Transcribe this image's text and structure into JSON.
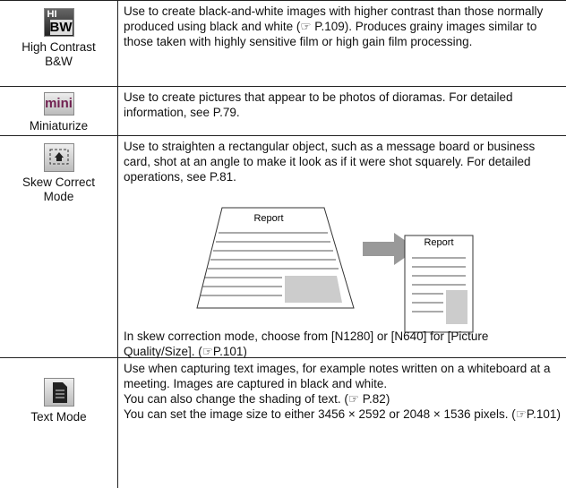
{
  "rows": [
    {
      "icon_text": [
        "HI",
        "BW"
      ],
      "label": [
        "High Contrast",
        "B&W"
      ],
      "text": [
        "Use to create black-and-white images with higher contrast than those normally produced using black and white (☞ P.109).  Produces grainy images similar to those taken with highly sensitive film or high gain film processing."
      ]
    },
    {
      "icon_text": [
        "mini"
      ],
      "label": [
        "Miniaturize"
      ],
      "text": [
        "Use to create pictures that appear to be photos of dioramas. For detailed information, see P.79."
      ]
    },
    {
      "icon_text": [],
      "label": [
        "Skew Correct",
        "Mode"
      ],
      "text": [
        "Use to straighten a rectangular object, such as a message board or business card, shot at an angle to make it look as if it were shot squarely. For detailed operations, see P.81.",
        "In skew correction mode, choose from [N1280] or [N640] for [Picture Quality/Size]. (☞P.101)"
      ],
      "diagram": [
        "Report",
        "Report"
      ]
    },
    {
      "icon_text": [],
      "label": [
        "Text Mode"
      ],
      "text": [
        "Use when capturing text images, for example notes written on a whiteboard at a meeting. Images are captured in black and white.",
        "You can also change the shading of text. (☞ P.82)",
        "You can set the image size to either 3456 × 2592 or 2048 × 1536 pixels. (☞P.101)"
      ]
    }
  ]
}
